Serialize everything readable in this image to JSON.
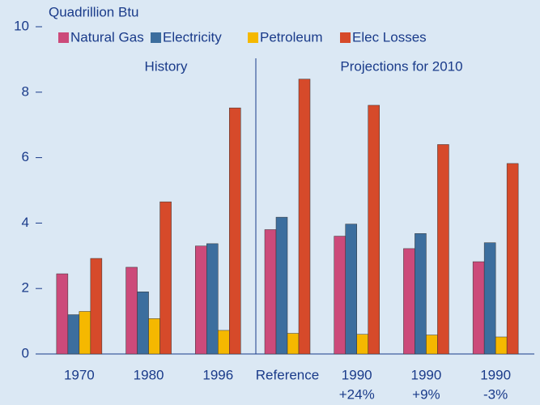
{
  "chart_data": {
    "type": "bar",
    "y_label": "Quadrillion Btu",
    "annotations": [
      "History",
      "Projections for 2010"
    ],
    "categories": [
      [
        "1970"
      ],
      [
        "1980"
      ],
      [
        "1996"
      ],
      [
        "Reference"
      ],
      [
        "1990",
        "+24%"
      ],
      [
        "1990",
        "+9%"
      ],
      [
        "1990",
        "-3%"
      ]
    ],
    "series": [
      {
        "name": "Natural Gas",
        "color": "#cc4a7a",
        "values": [
          2.45,
          2.65,
          3.3,
          3.8,
          3.6,
          3.22,
          2.82
        ]
      },
      {
        "name": "Electricity",
        "color": "#3c6e9e",
        "values": [
          1.2,
          1.9,
          3.37,
          4.18,
          3.97,
          3.68,
          3.4
        ]
      },
      {
        "name": "Petroleum",
        "color": "#f5b800",
        "values": [
          1.3,
          1.08,
          0.72,
          0.63,
          0.6,
          0.58,
          0.52
        ]
      },
      {
        "name": "Elec Losses",
        "color": "#d64a2a",
        "values": [
          2.92,
          4.65,
          7.52,
          8.4,
          7.6,
          6.4,
          5.82
        ]
      }
    ],
    "ylim": [
      0,
      10
    ],
    "yticks": [
      0,
      2,
      4,
      6,
      8,
      10
    ],
    "legend": "top"
  }
}
